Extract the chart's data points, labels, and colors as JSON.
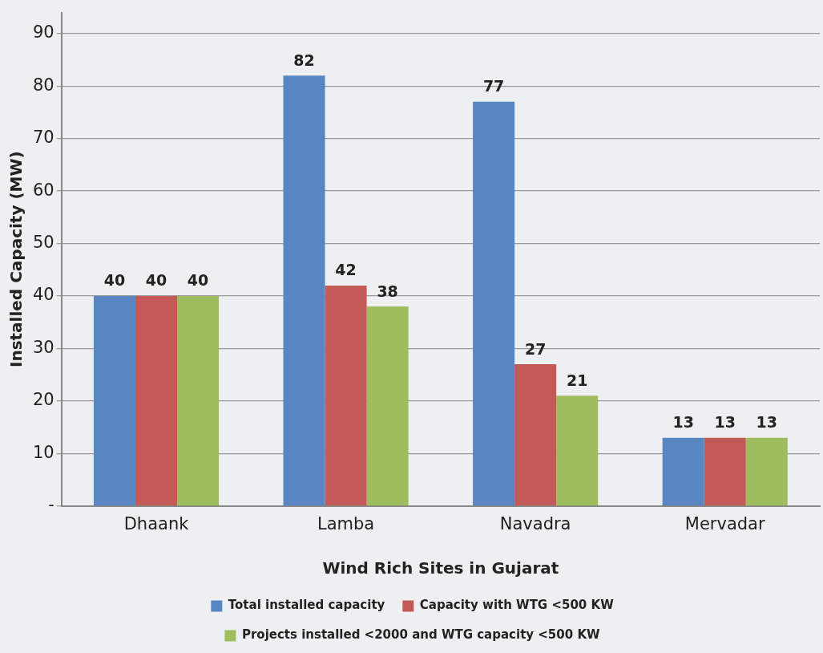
{
  "chart_data": {
    "type": "bar",
    "xlabel": "Wind Rich Sites in Gujarat",
    "ylabel": "Installed Capacity (MW)",
    "categories": [
      "Dhaank",
      "Lamba",
      "Navadra",
      "Mervadar"
    ],
    "series": [
      {
        "name": "Total installed capacity",
        "color": "#5886c2",
        "values": [
          40,
          82,
          77,
          13
        ]
      },
      {
        "name": "Capacity with WTG <500 KW",
        "color": "#c45a57",
        "values": [
          40,
          42,
          27,
          13
        ]
      },
      {
        "name": "Projects installed <2000 and WTG capacity <500 KW",
        "color": "#9fbd5e",
        "values": [
          40,
          38,
          21,
          13
        ]
      }
    ],
    "ylim": [
      0,
      94
    ],
    "yticks": [
      {
        "value": 0,
        "label": "-"
      },
      10,
      20,
      30,
      40,
      50,
      60,
      70,
      80,
      90
    ],
    "grid": "y",
    "legend": "bottom",
    "data_labels": true
  }
}
